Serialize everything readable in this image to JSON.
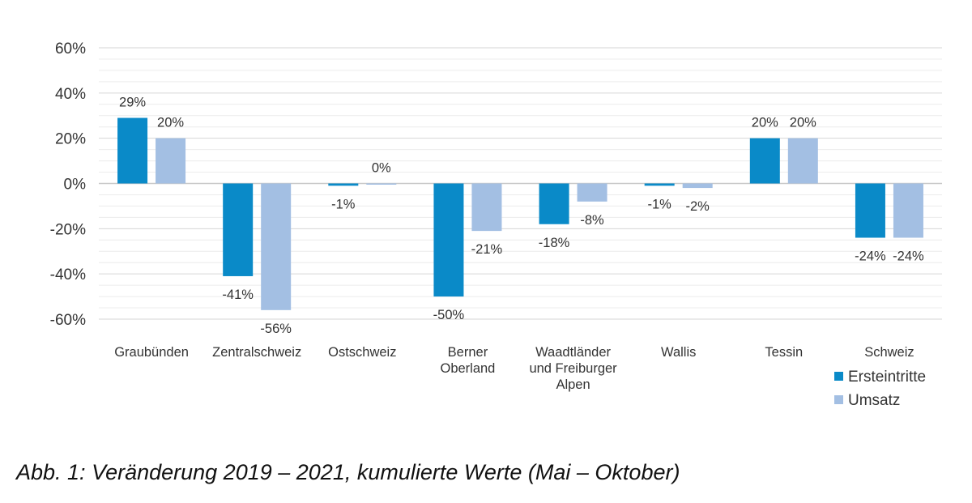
{
  "caption": "Abb. 1: Veränderung 2019 – 2021, kumulierte Werte (Mai – Oktober)",
  "chart_data": {
    "type": "bar",
    "categories": [
      [
        "Graubünden"
      ],
      [
        "Zentralschweiz"
      ],
      [
        "Ostschweiz"
      ],
      [
        "Berner",
        "Oberland"
      ],
      [
        "Waadtländer",
        "und Freiburger",
        "Alpen"
      ],
      [
        "Wallis"
      ],
      [
        "Tessin"
      ],
      [
        "Schweiz"
      ]
    ],
    "series": [
      {
        "name": "Ersteintritte",
        "color": "#0a8ac8",
        "values": [
          29,
          -41,
          -1,
          -50,
          -18,
          -1,
          20,
          -24
        ],
        "labels": [
          "29%",
          "-41%",
          "-1%",
          "-50%",
          "-18%",
          "-1%",
          "20%",
          "-24%"
        ]
      },
      {
        "name": "Umsatz",
        "color": "#a3bfe3",
        "values": [
          20,
          -56,
          0,
          -21,
          -8,
          -2,
          20,
          -24
        ],
        "labels": [
          "20%",
          "-56%",
          "0%",
          "-21%",
          "-8%",
          "-2%",
          "20%",
          "-24%"
        ]
      }
    ],
    "ylim": [
      -60,
      60
    ],
    "yticks": [
      60,
      40,
      20,
      0,
      -20,
      -40,
      -60
    ],
    "ytick_labels": [
      "60%",
      "40%",
      "20%",
      "0%",
      "-20%",
      "-40%",
      "-60%"
    ],
    "grid": true,
    "legend_position": "bottom-right"
  }
}
